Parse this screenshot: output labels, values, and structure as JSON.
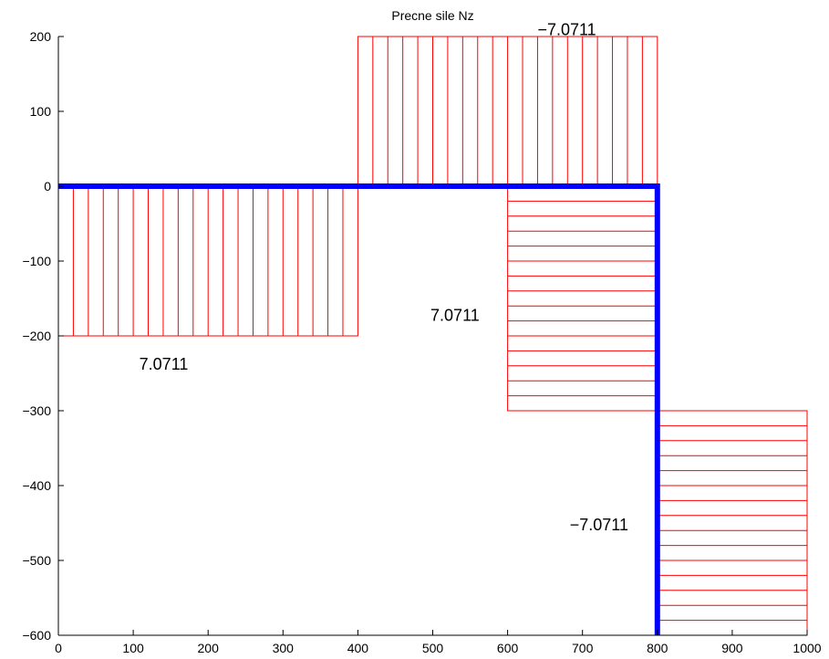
{
  "chart_data": {
    "type": "area",
    "title": "Precne sile Nz",
    "xlabel": "",
    "ylabel": "",
    "xlim": [
      0,
      1000
    ],
    "ylim": [
      -600,
      200
    ],
    "xticks": [
      0,
      100,
      200,
      300,
      400,
      500,
      600,
      700,
      800,
      900,
      1000
    ],
    "yticks": [
      200,
      100,
      0,
      -100,
      -200,
      -300,
      -400,
      -500,
      -600
    ],
    "grid": false,
    "structure": {
      "color": "#0000ff",
      "points": [
        [
          0,
          0
        ],
        [
          800,
          0
        ],
        [
          800,
          -600
        ]
      ]
    },
    "diagram_color": "#ff0000",
    "regions": [
      {
        "hatch": "vertical",
        "x0": 0,
        "x1": 400,
        "y0": 0,
        "y1": -200,
        "count": 20
      },
      {
        "hatch": "vertical",
        "x0": 400,
        "x1": 800,
        "y0": 0,
        "y1": 200,
        "count": 20
      },
      {
        "hatch": "horizontal",
        "x0": 600,
        "x1": 800,
        "y0": 0,
        "y1": -300,
        "count": 15
      },
      {
        "hatch": "horizontal",
        "x0": 800,
        "x1": 1000,
        "y0": -300,
        "y1": -600,
        "count": 15
      }
    ],
    "annotations": [
      {
        "text": "7.0711",
        "x": 108,
        "y": -245
      },
      {
        "text": "−7.0711",
        "x": 640,
        "y": 202
      },
      {
        "text": "7.0711",
        "x": 497,
        "y": -180
      },
      {
        "text": "−7.0711",
        "x": 683,
        "y": -460
      }
    ]
  }
}
